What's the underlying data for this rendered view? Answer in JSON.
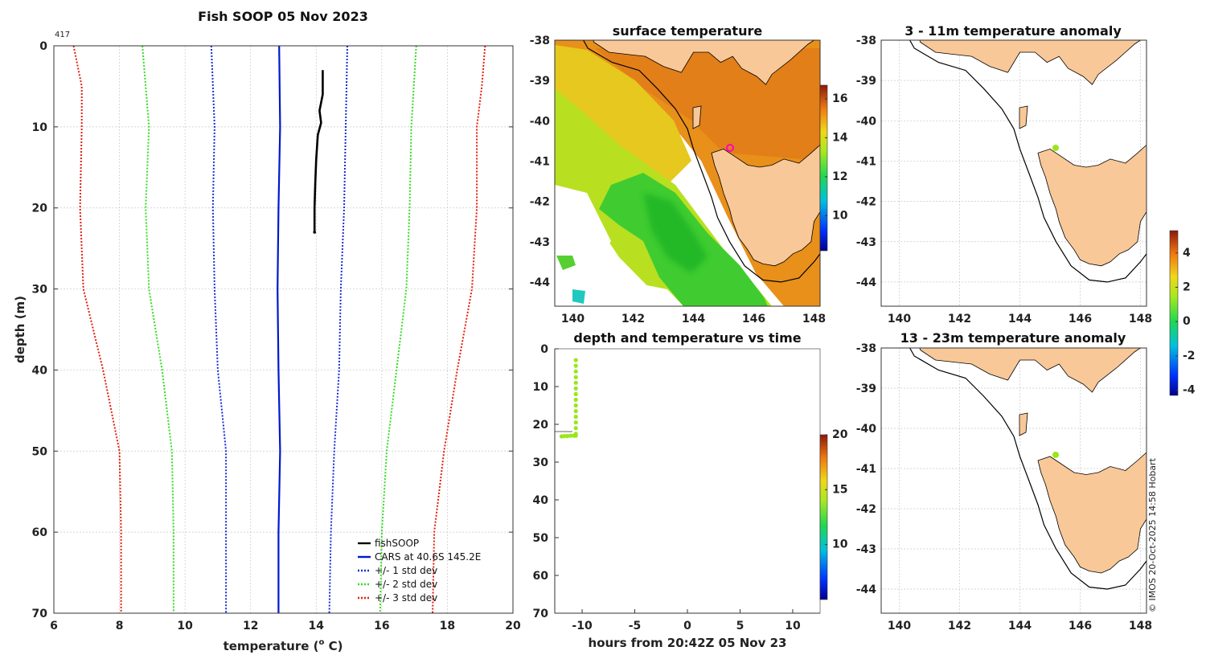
{
  "main_title": "Fish SOOP 05 Nov 2023",
  "profile_id": "417",
  "credit": "© IMOS 20-Oct-2025 14:58 Hobart",
  "colors": {
    "fish": "#000000",
    "cars": "#0018d0",
    "std1": "#1a2ad8",
    "std2": "#33dd22",
    "std3": "#e81c0c",
    "land": "#f9c898",
    "marker": "#9be61a"
  },
  "chart_data": [
    {
      "id": "profile",
      "type": "line",
      "title": "",
      "xlabel": "temperature (° C)",
      "xlabel_main": "temperature (",
      "xlabel_sup": "o",
      "xlabel_tail": " C)",
      "ylabel": "depth (m)",
      "xlim": [
        6,
        20
      ],
      "ylim": [
        0,
        70
      ],
      "y_reversed": true,
      "xticks": [
        "6",
        "8",
        "10",
        "12",
        "14",
        "16",
        "18",
        "20"
      ],
      "yticks": [
        "0",
        "10",
        "20",
        "30",
        "40",
        "50",
        "60",
        "70"
      ],
      "series": [
        {
          "name": "fishSOOP",
          "color": "#000000",
          "dash": "",
          "width": 2.6,
          "points": [
            [
              14.2,
              3
            ],
            [
              14.2,
              6
            ],
            [
              14.1,
              8
            ],
            [
              14.15,
              9.5
            ],
            [
              14.05,
              11
            ],
            [
              14.0,
              14
            ],
            [
              13.97,
              17
            ],
            [
              13.95,
              20
            ],
            [
              13.95,
              23
            ]
          ]
        },
        {
          "name": "CARS at 40.6S 145.2E",
          "color": "#0018d0",
          "dash": "",
          "width": 2.2,
          "points": [
            [
              12.87,
              0
            ],
            [
              12.9,
              10
            ],
            [
              12.85,
              20
            ],
            [
              12.82,
              30
            ],
            [
              12.85,
              40
            ],
            [
              12.9,
              50
            ],
            [
              12.85,
              60
            ],
            [
              12.85,
              70
            ]
          ]
        },
        {
          "name": "+/- 1 std dev",
          "color": "#1a2ad8",
          "dash": "2 2",
          "width": 2,
          "points": [
            [
              10.8,
              0
            ],
            [
              10.9,
              10
            ],
            [
              10.85,
              20
            ],
            [
              10.9,
              30
            ],
            [
              11.0,
              40
            ],
            [
              11.25,
              50
            ],
            [
              11.25,
              60
            ],
            [
              11.25,
              70
            ]
          ]
        },
        {
          "name": "",
          "color": "#1a2ad8",
          "dash": "2 2",
          "width": 2,
          "points": [
            [
              14.95,
              0
            ],
            [
              14.9,
              10
            ],
            [
              14.85,
              20
            ],
            [
              14.75,
              30
            ],
            [
              14.7,
              40
            ],
            [
              14.55,
              50
            ],
            [
              14.45,
              60
            ],
            [
              14.4,
              70
            ]
          ]
        },
        {
          "name": "+/- 2 std dev",
          "color": "#33dd22",
          "dash": "2 2",
          "width": 2,
          "points": [
            [
              8.7,
              0
            ],
            [
              8.9,
              10
            ],
            [
              8.8,
              20
            ],
            [
              8.9,
              30
            ],
            [
              9.3,
              40
            ],
            [
              9.6,
              50
            ],
            [
              9.65,
              60
            ],
            [
              9.65,
              70
            ]
          ]
        },
        {
          "name": "",
          "color": "#33dd22",
          "dash": "2 2",
          "width": 2,
          "points": [
            [
              17.05,
              0
            ],
            [
              16.9,
              10
            ],
            [
              16.85,
              20
            ],
            [
              16.75,
              30
            ],
            [
              16.45,
              40
            ],
            [
              16.15,
              50
            ],
            [
              16.0,
              60
            ],
            [
              15.95,
              70
            ]
          ]
        },
        {
          "name": "+/- 3 std dev",
          "color": "#e81c0c",
          "dash": "2 2",
          "width": 2,
          "points": [
            [
              6.6,
              0
            ],
            [
              6.85,
              5
            ],
            [
              6.85,
              10
            ],
            [
              6.8,
              20
            ],
            [
              6.9,
              30
            ],
            [
              7.5,
              40
            ],
            [
              8.0,
              50
            ],
            [
              8.05,
              60
            ],
            [
              8.05,
              70
            ]
          ]
        },
        {
          "name": "",
          "color": "#e81c0c",
          "dash": "2 2",
          "width": 2,
          "points": [
            [
              19.15,
              0
            ],
            [
              19.05,
              5
            ],
            [
              18.9,
              10
            ],
            [
              18.9,
              20
            ],
            [
              18.75,
              30
            ],
            [
              18.3,
              40
            ],
            [
              17.9,
              50
            ],
            [
              17.6,
              60
            ],
            [
              17.55,
              70
            ]
          ]
        }
      ]
    },
    {
      "id": "sst",
      "type": "heatmap",
      "title": "surface temperature",
      "xlim": [
        139.4,
        148.2
      ],
      "ylim": [
        -44.6,
        -38
      ],
      "xticks": [
        "140",
        "142",
        "144",
        "146",
        "148"
      ],
      "yticks": [
        "-38",
        "-39",
        "-40",
        "-41",
        "-42",
        "-43",
        "-44"
      ],
      "colorbar": {
        "min": 8.2,
        "max": 16.7,
        "ticks": [
          "10",
          "12",
          "14",
          "16"
        ]
      },
      "marker": {
        "lon": 145.2,
        "lat": -40.6
      }
    },
    {
      "id": "timeseries",
      "type": "scatter",
      "title": "depth and temperature vs time",
      "xlabel": "hours from 20:42Z 05 Nov 23",
      "xlim": [
        -12.6,
        12.6
      ],
      "ylim": [
        0,
        70
      ],
      "y_reversed": true,
      "xticks": [
        "-10",
        "-5",
        "0",
        "5",
        "10"
      ],
      "yticks": [
        "0",
        "10",
        "20",
        "30",
        "40",
        "50",
        "60",
        "70"
      ],
      "colorbar": {
        "min": 5,
        "max": 20,
        "ticks": [
          "10",
          "15",
          "20"
        ]
      },
      "points": [
        [
          -10.6,
          3
        ],
        [
          -10.6,
          4.5
        ],
        [
          -10.6,
          6
        ],
        [
          -10.6,
          7.5
        ],
        [
          -10.6,
          9
        ],
        [
          -10.6,
          10.5
        ],
        [
          -10.6,
          12
        ],
        [
          -10.6,
          13.5
        ],
        [
          -10.6,
          15
        ],
        [
          -10.6,
          16.5
        ],
        [
          -10.6,
          18
        ],
        [
          -10.6,
          19.5
        ],
        [
          -10.6,
          21
        ],
        [
          -10.6,
          22.5
        ],
        [
          -10.6,
          23
        ],
        [
          -10.8,
          23
        ],
        [
          -11.1,
          23
        ],
        [
          -11.4,
          23.1
        ],
        [
          -11.7,
          23.1
        ],
        [
          -11.95,
          23.2
        ]
      ]
    },
    {
      "id": "anom_shallow",
      "type": "heatmap",
      "title": "3 - 11m temperature anomaly",
      "xlim": [
        139.4,
        148.2
      ],
      "ylim": [
        -44.6,
        -38
      ],
      "xticks": [
        "140",
        "142",
        "144",
        "146",
        "148"
      ],
      "yticks": [
        "-38",
        "-39",
        "-40",
        "-41",
        "-42",
        "-43",
        "-44"
      ],
      "marker": {
        "lon": 145.2,
        "lat": -40.6
      }
    },
    {
      "id": "anom_deep",
      "type": "heatmap",
      "title": "13 - 23m temperature anomaly",
      "xlim": [
        139.4,
        148.2
      ],
      "ylim": [
        -44.6,
        -38
      ],
      "xticks": [
        "140",
        "142",
        "144",
        "146",
        "148"
      ],
      "yticks": [
        "-38",
        "-39",
        "-40",
        "-41",
        "-42",
        "-43",
        "-44"
      ],
      "marker": {
        "lon": 145.2,
        "lat": -40.6
      },
      "colorbar": {
        "min": -4.3,
        "max": 5.3,
        "ticks": [
          "4",
          "2",
          "0",
          "-2",
          "-4"
        ]
      }
    }
  ]
}
